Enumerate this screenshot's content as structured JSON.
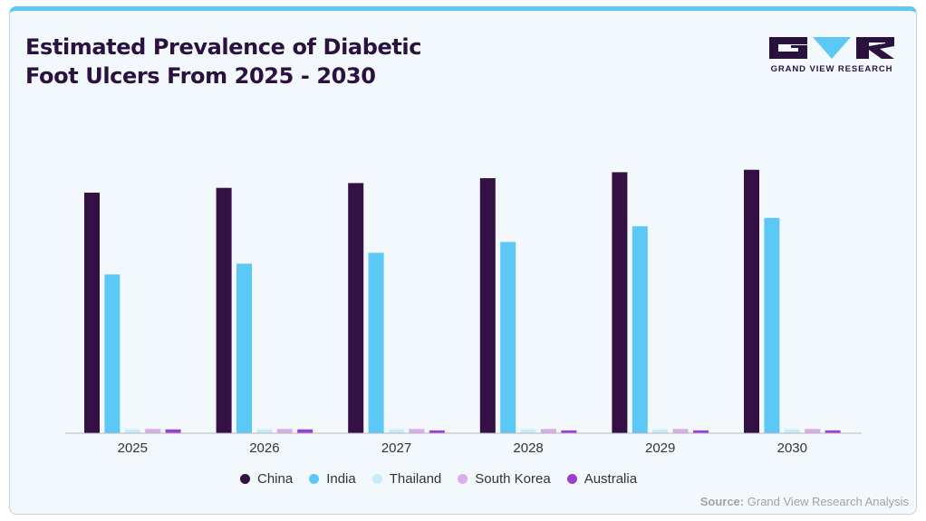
{
  "header": {
    "title_line1": "Estimated Prevalence of Diabetic",
    "title_line2": "Foot Ulcers From 2025 - 2030"
  },
  "logo": {
    "text": "GRAND VIEW RESEARCH",
    "color": "#2b1140",
    "accent": "#5bc8f5"
  },
  "footer": {
    "source_label": "Source:",
    "source_text": "Grand View Research Analysis"
  },
  "chart_data": {
    "type": "bar",
    "categories": [
      "2025",
      "2026",
      "2027",
      "2028",
      "2029",
      "2030"
    ],
    "series": [
      {
        "name": "China",
        "color": "#351045",
        "values": [
          100,
          102,
          104,
          106,
          108.5,
          109.5
        ]
      },
      {
        "name": "India",
        "color": "#5bc8f5",
        "values": [
          66,
          70.5,
          75,
          79.5,
          86,
          89.5
        ]
      },
      {
        "name": "Thailand",
        "color": "#c5ecfb",
        "values": [
          1.6,
          1.6,
          1.6,
          1.6,
          1.6,
          1.6
        ]
      },
      {
        "name": "South Korea",
        "color": "#d9aee8",
        "values": [
          1.8,
          1.8,
          1.8,
          1.8,
          1.8,
          1.8
        ]
      },
      {
        "name": "Australia",
        "color": "#9b3fd0",
        "values": [
          1.6,
          1.6,
          1.2,
          1.2,
          1.2,
          1.2
        ]
      }
    ],
    "title": "Estimated Prevalence of Diabetic Foot Ulcers From 2025 - 2030",
    "xlabel": "",
    "ylabel": "",
    "ylim": [
      0,
      120
    ],
    "grid": false,
    "y_axis_shown": false,
    "legend_position": "bottom-center"
  }
}
